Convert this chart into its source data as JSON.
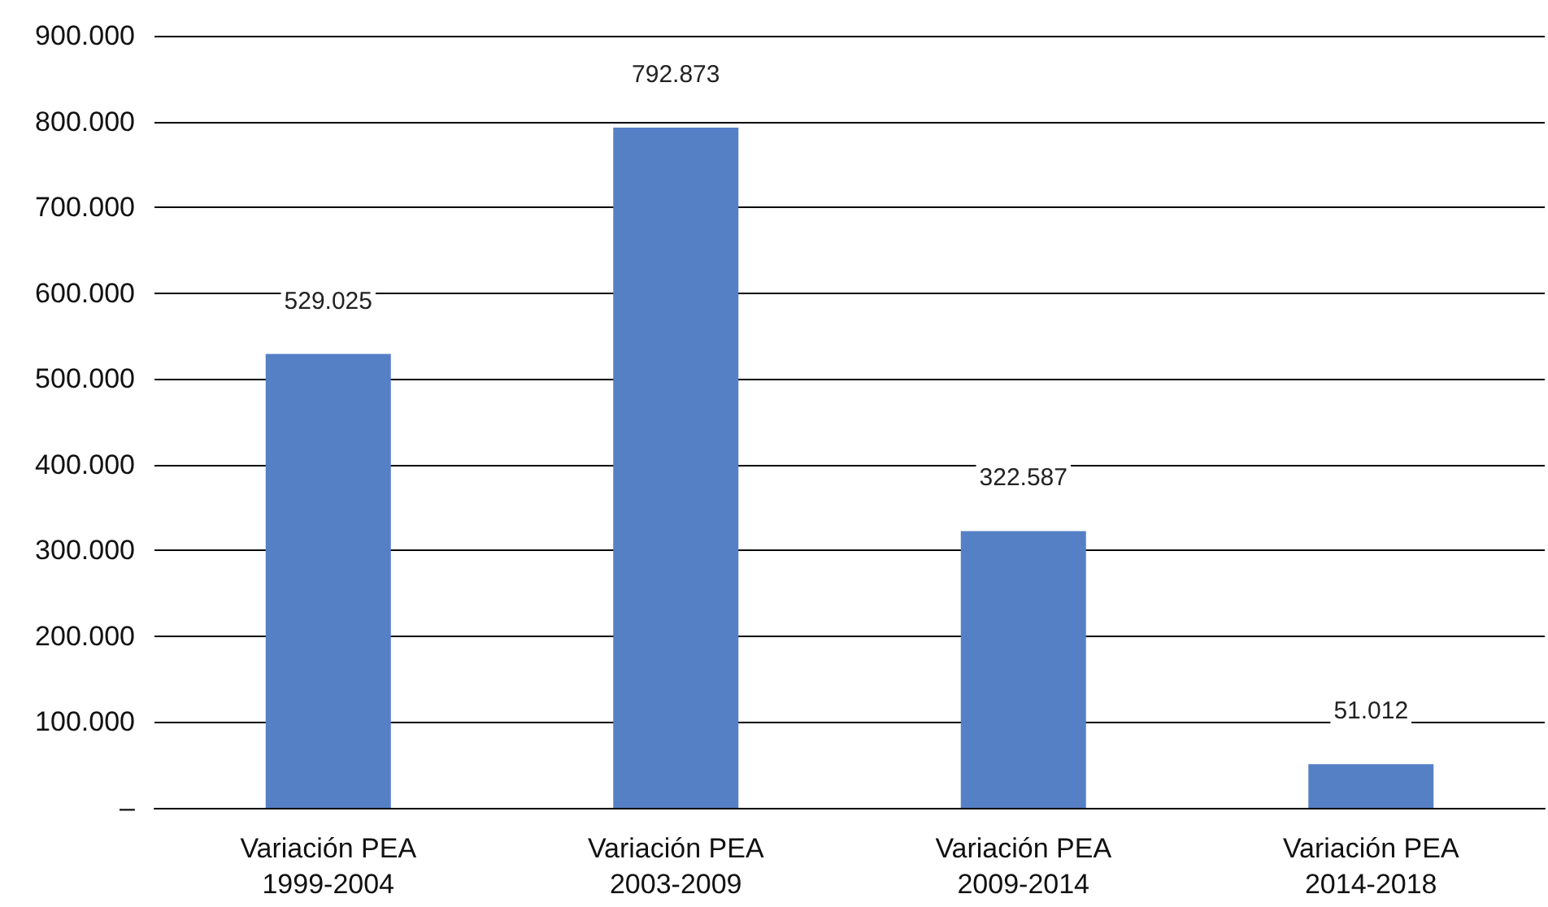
{
  "chart_data": {
    "type": "bar",
    "categories": [
      "Variación PEA\n1999-2004",
      "Variación PEA\n2003-2009",
      "Variación PEA\n2009-2014",
      "Variación PEA\n2014-2018"
    ],
    "values": [
      529025,
      792873,
      322587,
      51012
    ],
    "value_labels": [
      "529.025",
      "792.873",
      "322.587",
      "51.012"
    ],
    "color": "#5580c5",
    "ylim": [
      0,
      900000
    ],
    "yticks": [
      {
        "value": 0,
        "label": "–"
      },
      {
        "value": 100000,
        "label": "100.000"
      },
      {
        "value": 200000,
        "label": "200.000"
      },
      {
        "value": 300000,
        "label": "300.000"
      },
      {
        "value": 400000,
        "label": "400.000"
      },
      {
        "value": 500000,
        "label": "500.000"
      },
      {
        "value": 600000,
        "label": "600.000"
      },
      {
        "value": 700000,
        "label": "700.000"
      },
      {
        "value": 800000,
        "label": "800.000"
      },
      {
        "value": 900000,
        "label": "900.000"
      }
    ],
    "grid": "y"
  }
}
